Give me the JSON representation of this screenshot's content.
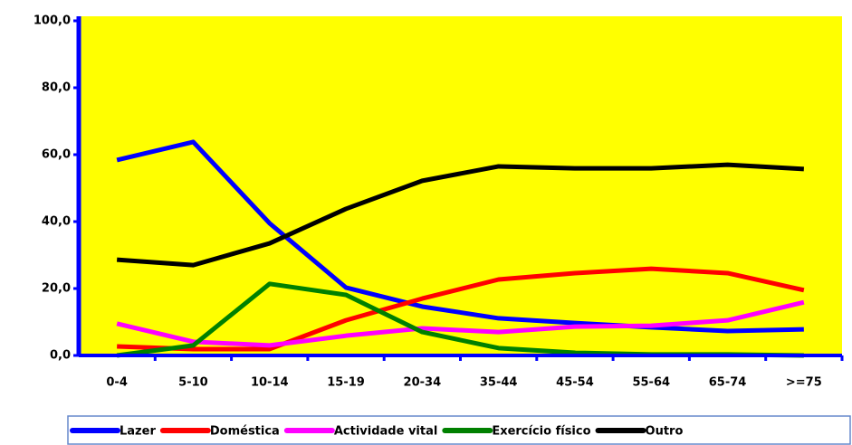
{
  "chart_data": {
    "type": "line",
    "categories": [
      "0-4",
      "5-10",
      "10-14",
      "15-19",
      "20-34",
      "35-44",
      "45-54",
      "55-64",
      "65-74",
      ">=75"
    ],
    "series": [
      {
        "name": "Lazer",
        "color": "#0000ff",
        "values": [
          58.4,
          63.8,
          39.5,
          20.3,
          14.6,
          11.1,
          9.7,
          8.4,
          7.3,
          7.8
        ]
      },
      {
        "name": "Doméstica",
        "color": "#ff0000",
        "values": [
          2.7,
          1.9,
          1.9,
          10.5,
          17.0,
          22.7,
          24.6,
          25.9,
          24.6,
          19.5
        ]
      },
      {
        "name": "Actividade vital",
        "color": "#ff00ff",
        "values": [
          9.5,
          4.1,
          3.0,
          5.9,
          8.1,
          7.0,
          8.6,
          8.9,
          10.5,
          15.9
        ]
      },
      {
        "name": "Exercício físico",
        "color": "#008000",
        "values": [
          0,
          3.0,
          21.4,
          18.1,
          7.0,
          2.2,
          0.8,
          0.3,
          0.3,
          0
        ]
      },
      {
        "name": "Outro",
        "color": "#000000",
        "values": [
          28.6,
          27.0,
          33.5,
          43.8,
          52.2,
          56.5,
          55.9,
          55.9,
          57.0,
          55.7
        ]
      }
    ],
    "ylim": [
      0,
      100
    ],
    "yticks": [
      {
        "value": 0,
        "label": "0,0"
      },
      {
        "value": 20,
        "label": "20,0"
      },
      {
        "value": 40,
        "label": "40,0"
      },
      {
        "value": 60,
        "label": "60,0"
      },
      {
        "value": 80,
        "label": "80,0"
      },
      {
        "value": 100,
        "label": "100,0"
      }
    ],
    "plot_background": "#ffff00",
    "axis_color": "#0000ff"
  }
}
